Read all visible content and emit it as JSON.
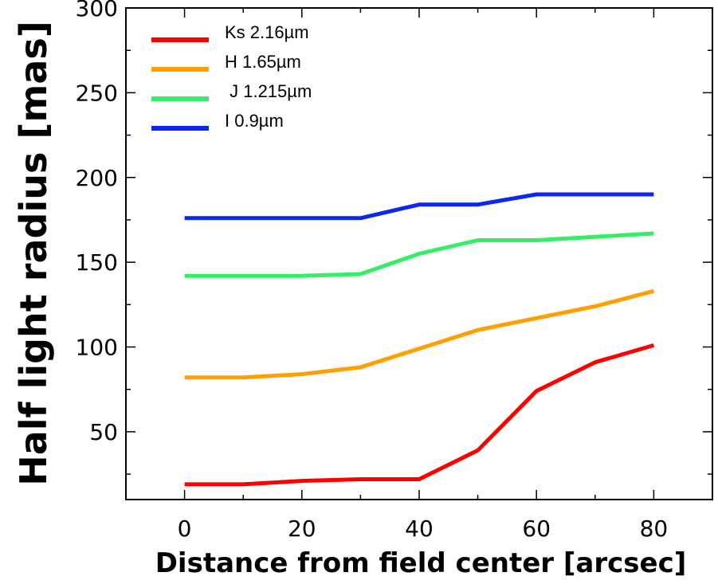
{
  "chart_data": {
    "type": "line",
    "title": "",
    "xlabel": "Distance from field center [arcsec]",
    "ylabel": "Half light radius [mas]",
    "xlim": [
      -10,
      90
    ],
    "ylim": [
      10,
      300
    ],
    "xticks": [
      0,
      20,
      40,
      60,
      80
    ],
    "yticks": [
      50,
      100,
      150,
      200,
      250,
      300
    ],
    "grid": false,
    "legend_position": "top-left",
    "series": [
      {
        "name": "Ks 2.16µm",
        "color": "#ff0000",
        "x": [
          0,
          10,
          20,
          30,
          40,
          50,
          60,
          70,
          80
        ],
        "y": [
          19,
          19,
          21,
          22,
          22,
          39,
          74,
          91,
          101
        ]
      },
      {
        "name": "H 1.65µm",
        "color": "#ffa000",
        "x": [
          0,
          10,
          20,
          30,
          40,
          50,
          60,
          70,
          80
        ],
        "y": [
          82,
          82,
          84,
          88,
          99,
          110,
          117,
          124,
          133
        ]
      },
      {
        "name": " J 1.215µm",
        "color": "#33ee66",
        "x": [
          0,
          10,
          20,
          30,
          40,
          50,
          60,
          70,
          80
        ],
        "y": [
          142,
          142,
          142,
          143,
          155,
          163,
          163,
          165,
          167
        ]
      },
      {
        "name": "I 0.9µm",
        "color": "#0a28f0",
        "x": [
          0,
          10,
          20,
          30,
          40,
          50,
          60,
          70,
          80
        ],
        "y": [
          176,
          176,
          176,
          176,
          184,
          184,
          190,
          190,
          190
        ]
      }
    ]
  }
}
